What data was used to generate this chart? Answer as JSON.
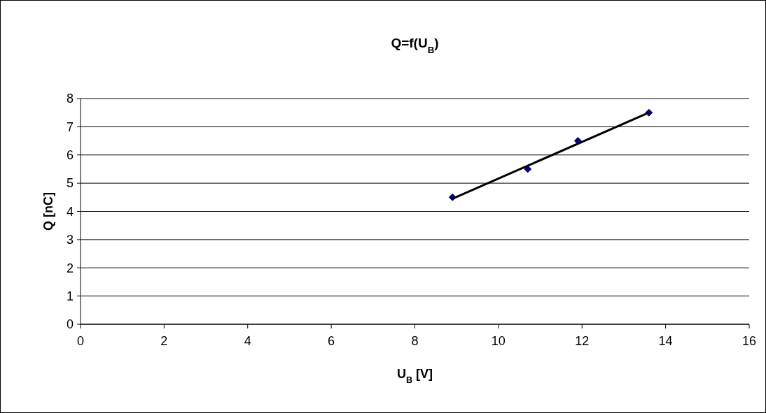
{
  "chart_data": {
    "type": "scatter",
    "title": "Q=f(U$_{B}$)",
    "xlabel": "U$_{B}$ [V]",
    "ylabel": "Q [nC]",
    "xlim": [
      0,
      16
    ],
    "xticks": [
      0,
      2,
      4,
      6,
      8,
      10,
      12,
      14,
      16
    ],
    "ylim": [
      0,
      8
    ],
    "yticks": [
      0,
      1,
      2,
      3,
      4,
      5,
      6,
      7,
      8
    ],
    "grid": "y",
    "series": [
      {
        "color": "#000080",
        "marker": "diamond",
        "x": [
          8.9,
          10.7,
          11.9,
          13.6
        ],
        "values": [
          4.5,
          5.5,
          6.5,
          7.5
        ]
      },
      {
        "type": "line",
        "color": "#000000",
        "marker": "none",
        "x": [
          8.9,
          13.6
        ],
        "values": [
          4.45,
          7.5
        ]
      }
    ]
  }
}
